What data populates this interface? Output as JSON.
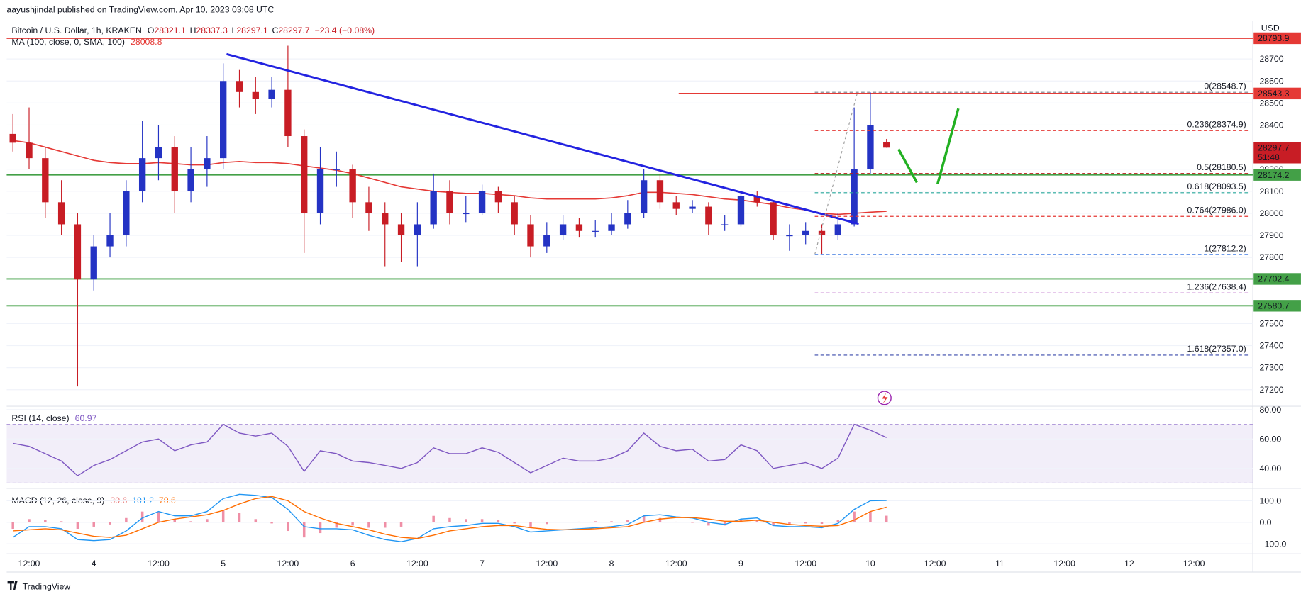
{
  "header": {
    "author_line": "aayushjindal published on TradingView.com, Apr 10, 2023 03:08 UTC",
    "brand": "TradingView"
  },
  "chart_data": [
    {
      "type": "candlestick",
      "title": "Bitcoin / U.S. Dollar, 1h, KRAKEN",
      "currency": "USD",
      "ohlc_labels": [
        "O",
        "H",
        "L",
        "C"
      ],
      "change": "−23.4 (−0.08%)",
      "countdown": "51:48",
      "categories": [
        null,
        "12:00",
        null,
        null,
        null,
        "4",
        null,
        null,
        null,
        "12:00",
        null,
        null,
        null,
        "5",
        null,
        null,
        null,
        "12:00",
        null,
        null,
        null,
        "6",
        null,
        null,
        null,
        "12:00",
        null,
        null,
        null,
        "7",
        null,
        null,
        null,
        "12:00",
        null,
        null,
        null,
        "8",
        null,
        null,
        null,
        "12:00",
        null,
        null,
        null,
        "9",
        null,
        null,
        null,
        "12:00",
        null,
        null,
        null,
        "10",
        null,
        null,
        null,
        "12:00",
        null,
        null,
        null,
        "11",
        null,
        null,
        null,
        "12:00",
        null,
        null,
        null,
        "12",
        null,
        null,
        null,
        "12:00",
        null,
        null,
        null
      ],
      "open": [
        28360,
        28320,
        28250,
        28050,
        27950,
        27700,
        27850,
        27900,
        28100,
        28250,
        28300,
        28100,
        28200,
        28250,
        28600,
        28550,
        28520,
        28560,
        28350,
        28000,
        28200,
        28200,
        28050,
        28000,
        27950,
        27900,
        27950,
        28100,
        28000,
        28000,
        28100,
        28050,
        27950,
        27850,
        27900,
        27950,
        27920,
        27920,
        27950,
        28000,
        28150,
        28050,
        28020,
        28030,
        27950,
        27950,
        28080,
        28050,
        27900,
        27900,
        27920,
        27900,
        27950,
        28200,
        28321.1,
        null,
        null,
        null,
        null,
        null,
        null,
        null,
        null,
        null,
        null,
        null,
        null,
        null,
        null,
        null,
        null,
        null,
        null,
        null,
        null,
        null,
        null
      ],
      "high": [
        28450,
        28480,
        28300,
        28150,
        28000,
        27900,
        28000,
        28150,
        28420,
        28400,
        28350,
        28300,
        28350,
        28680,
        28650,
        28620,
        28620,
        28760,
        28380,
        28300,
        28280,
        28220,
        28120,
        28050,
        28000,
        28050,
        28180,
        28150,
        28080,
        28130,
        28120,
        28080,
        27990,
        27960,
        27990,
        27980,
        27970,
        28000,
        28060,
        28200,
        28180,
        28080,
        28060,
        28050,
        27990,
        28100,
        28100,
        28060,
        27950,
        27960,
        27950,
        28000,
        28480,
        28548.7,
        28337.3,
        null,
        null,
        null,
        null,
        null,
        null,
        null,
        null,
        null,
        null,
        null,
        null,
        null,
        null,
        null,
        null,
        null,
        null,
        null,
        null,
        null,
        null
      ],
      "low": [
        28280,
        28200,
        27980,
        27900,
        27215,
        27650,
        27800,
        27850,
        28050,
        28150,
        28000,
        28050,
        28120,
        28200,
        28480,
        28450,
        28480,
        28300,
        27820,
        27950,
        28120,
        27980,
        27920,
        27760,
        27780,
        27760,
        27930,
        27950,
        27960,
        27990,
        28000,
        27900,
        27800,
        27820,
        27880,
        27890,
        27890,
        27900,
        27930,
        27980,
        28020,
        27990,
        28000,
        27900,
        27920,
        27940,
        28030,
        27880,
        27830,
        27860,
        27812.2,
        27880,
        27940,
        28180,
        28297.1,
        null,
        null,
        null,
        null,
        null,
        null,
        null,
        null,
        null,
        null,
        null,
        null,
        null,
        null,
        null,
        null,
        null,
        null,
        null,
        null,
        null,
        null
      ],
      "close": [
        28320,
        28250,
        28050,
        27950,
        27700,
        27850,
        27900,
        28100,
        28250,
        28300,
        28100,
        28200,
        28250,
        28600,
        28550,
        28520,
        28560,
        28350,
        28000,
        28200,
        28200,
        28050,
        28000,
        27950,
        27900,
        27950,
        28100,
        28000,
        28000,
        28100,
        28050,
        27950,
        27850,
        27900,
        27950,
        27920,
        27920,
        27950,
        28000,
        28150,
        28050,
        28020,
        28030,
        27950,
        27950,
        28080,
        28050,
        27900,
        27900,
        27920,
        27900,
        27950,
        28200,
        28400,
        28297.7,
        null,
        null,
        null,
        null,
        null,
        null,
        null,
        null,
        null,
        null,
        null,
        null,
        null,
        null,
        null,
        null,
        null,
        null,
        null,
        null,
        null,
        null
      ],
      "up_color": "#2433c4",
      "down_color": "#c81d25",
      "series": [
        {
          "name": "MA (100, close, 0, SMA, 100)",
          "color": "#e53935",
          "values": [
            28330,
            28320,
            28300,
            28280,
            28260,
            28240,
            28230,
            28225,
            28225,
            28230,
            28225,
            28220,
            28220,
            28230,
            28235,
            28230,
            28230,
            28225,
            28215,
            28205,
            28195,
            28180,
            28160,
            28140,
            28120,
            28110,
            28100,
            28095,
            28090,
            28090,
            28085,
            28080,
            28070,
            28065,
            28065,
            28065,
            28065,
            28070,
            28080,
            28095,
            28095,
            28090,
            28085,
            28075,
            28065,
            28060,
            28050,
            28040,
            28025,
            28015,
            28000,
            27995,
            28000,
            28005,
            28008.8,
            null,
            null,
            null,
            null,
            null,
            null,
            null,
            null,
            null,
            null,
            null,
            null,
            null,
            null,
            null,
            null,
            null,
            null,
            null,
            null,
            null,
            null
          ]
        }
      ],
      "ylim": [
        27125,
        28862
      ],
      "yticks": [
        27200,
        27300,
        27400,
        27500,
        27800,
        27900,
        28000,
        28100,
        28200,
        28400,
        28500,
        28600,
        28700
      ],
      "levels": [
        {
          "value": 28793.9,
          "color": "#e53935"
        },
        {
          "value": 28543.3,
          "color": "#e53935"
        },
        {
          "value": 28174.2,
          "color": "#43a047"
        },
        {
          "value": 27702.4,
          "color": "#43a047"
        },
        {
          "value": 27580.7,
          "color": "#43a047"
        }
      ],
      "trendline": {
        "color": "#2323e0",
        "values": [
          28722,
          27952
        ]
      },
      "fib_levels": [
        {
          "label": "0(28548.7)",
          "value": 28548.7,
          "color": "#787b86"
        },
        {
          "label": "0.236(28374.9)",
          "value": 28374.9,
          "color": "#e53935"
        },
        {
          "label": "0.5(28180.5)",
          "value": 28180.5,
          "color": "#b71c1c"
        },
        {
          "label": "0.618(28093.5)",
          "value": 28093.5,
          "color": "#26a69a"
        },
        {
          "label": "0.764(27986.0)",
          "value": 27986.0,
          "color": "#e53935"
        },
        {
          "label": "1(27812.2)",
          "value": 27812.2,
          "color": "#5c8ee6"
        },
        {
          "label": "1.236(27638.4)",
          "value": 27638.4,
          "color": "#9c27b0"
        },
        {
          "label": "1.618(27357.0)",
          "value": 27357.0,
          "color": "#3949ab"
        }
      ]
    },
    {
      "type": "line",
      "title": "RSI (14, close)",
      "color": "#7e57c2",
      "values": [
        57,
        55,
        50,
        45,
        35,
        42,
        46,
        52,
        58,
        60,
        52,
        56,
        58,
        70,
        64,
        62,
        64,
        55,
        38,
        52,
        50,
        45,
        44,
        42,
        40,
        44,
        54,
        50,
        50,
        54,
        51,
        44,
        37,
        42,
        47,
        45,
        45,
        47,
        52,
        64,
        55,
        52,
        53,
        45,
        46,
        56,
        52,
        40,
        42,
        44,
        40,
        47,
        70,
        66,
        60.97
      ],
      "ylim": [
        27,
        82.3
      ],
      "yticks": [
        {
          "value": 80,
          "label": "80.00"
        },
        {
          "value": 60,
          "label": "60.00"
        },
        {
          "value": 40,
          "label": "40.00"
        }
      ],
      "band": [
        30,
        70
      ]
    },
    {
      "type": "macd",
      "title": "MACD (12, 26, close, 9)",
      "histogram": {
        "color": "#ef8fa6",
        "values": [
          -30,
          15,
          10,
          5,
          -30,
          -20,
          -10,
          20,
          50,
          50,
          15,
          5,
          15,
          55,
          45,
          15,
          -5,
          -40,
          -70,
          -50,
          -25,
          -15,
          -25,
          -25,
          -20,
          0,
          30,
          20,
          15,
          15,
          10,
          -5,
          -20,
          -8,
          0,
          3,
          5,
          5,
          10,
          30,
          20,
          3,
          -2,
          -15,
          -15,
          10,
          10,
          -15,
          -10,
          -5,
          -7,
          10,
          50,
          50,
          30.6
        ]
      },
      "macd": {
        "color": "#2196f3",
        "values": [
          -70,
          -20,
          -20,
          -30,
          -80,
          -85,
          -80,
          -40,
          20,
          50,
          30,
          30,
          50,
          110,
          130,
          125,
          115,
          60,
          -20,
          -30,
          -30,
          -35,
          -60,
          -80,
          -90,
          -75,
          -30,
          -20,
          -15,
          -5,
          -5,
          -20,
          -45,
          -40,
          -35,
          -30,
          -25,
          -20,
          -10,
          30,
          35,
          25,
          20,
          0,
          -10,
          15,
          20,
          -15,
          -20,
          -20,
          -25,
          -5,
          60,
          100,
          101.2
        ]
      },
      "signal": {
        "color": "#ff6d00",
        "values": [
          -40,
          -35,
          -30,
          -35,
          -50,
          -65,
          -70,
          -60,
          -30,
          0,
          15,
          25,
          35,
          55,
          85,
          110,
          120,
          100,
          50,
          20,
          -5,
          -20,
          -35,
          -55,
          -70,
          -75,
          -60,
          -40,
          -30,
          -20,
          -15,
          -15,
          -25,
          -32,
          -35,
          -33,
          -30,
          -25,
          -20,
          0,
          15,
          22,
          22,
          15,
          5,
          5,
          10,
          0,
          -10,
          -15,
          -18,
          -15,
          10,
          50,
          70.6
        ]
      },
      "ylim": [
        -146,
        154
      ],
      "yticks": [
        {
          "value": 100,
          "label": "100.0"
        },
        {
          "value": 0,
          "label": "0.0"
        },
        {
          "value": -100,
          "label": "−100.0"
        }
      ]
    }
  ]
}
